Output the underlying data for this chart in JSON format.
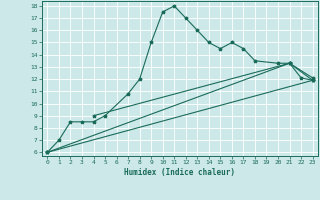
{
  "bg_color": "#cce8e8",
  "grid_color": "#aad4d4",
  "line_color": "#1a6b5a",
  "xlabel": "Humidex (Indice chaleur)",
  "xlim": [
    -0.5,
    23.5
  ],
  "ylim": [
    5.7,
    18.4
  ],
  "xticks": [
    0,
    1,
    2,
    3,
    4,
    5,
    6,
    7,
    8,
    9,
    10,
    11,
    12,
    13,
    14,
    15,
    16,
    17,
    18,
    19,
    20,
    21,
    22,
    23
  ],
  "yticks": [
    6,
    7,
    8,
    9,
    10,
    11,
    12,
    13,
    14,
    15,
    16,
    17,
    18
  ],
  "curve1_x": [
    0,
    1,
    2,
    3,
    4,
    5,
    7,
    8,
    9,
    10,
    11,
    12,
    13,
    14,
    15,
    16,
    17,
    18,
    20,
    21,
    22,
    23
  ],
  "curve1_y": [
    6,
    7,
    8.5,
    8.5,
    8.5,
    9,
    10.8,
    12,
    15,
    17.5,
    18,
    17,
    16,
    15,
    14.5,
    15,
    14.5,
    13.5,
    13.3,
    13.3,
    12.1,
    11.9
  ],
  "line2_x": [
    0,
    21,
    23
  ],
  "line2_y": [
    6,
    13.3,
    12.1
  ],
  "line3_x": [
    0,
    23
  ],
  "line3_y": [
    6,
    11.9
  ],
  "line4_x": [
    4,
    21,
    23
  ],
  "line4_y": [
    9,
    13.3,
    11.9
  ]
}
